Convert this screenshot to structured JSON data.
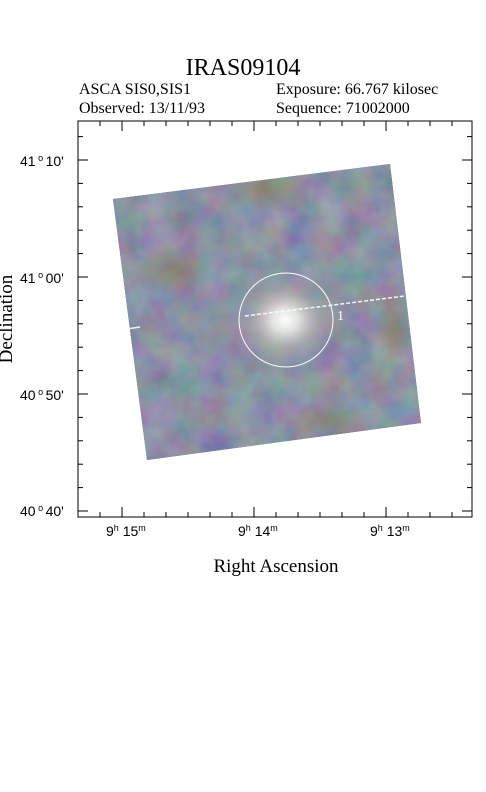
{
  "title": "IRAS09104",
  "meta": {
    "instrument": "ASCA SIS0,SIS1",
    "exposure": "Exposure: 66.767 kilosec",
    "observed": "Observed: 13/11/93",
    "sequence": "Sequence: 71002000"
  },
  "axes": {
    "xlabel": "Right Ascension",
    "ylabel": "Declination",
    "dec_ticks": [
      {
        "deg": "41",
        "min": "10",
        "unit": "'"
      },
      {
        "deg": "41",
        "min": "00",
        "unit": "'"
      },
      {
        "deg": "40",
        "min": "50",
        "unit": "'"
      },
      {
        "deg": "40",
        "min": "40",
        "unit": "'"
      }
    ],
    "ra_ticks": [
      {
        "h": "9",
        "m": "15"
      },
      {
        "h": "9",
        "m": "14"
      },
      {
        "h": "9",
        "m": "13"
      }
    ]
  },
  "source": {
    "label": "1"
  },
  "colors": {
    "background": "#ffffff",
    "image_base": "#3a4a60",
    "image_warm": "#6a6040",
    "source_glow": "#ffffff"
  }
}
